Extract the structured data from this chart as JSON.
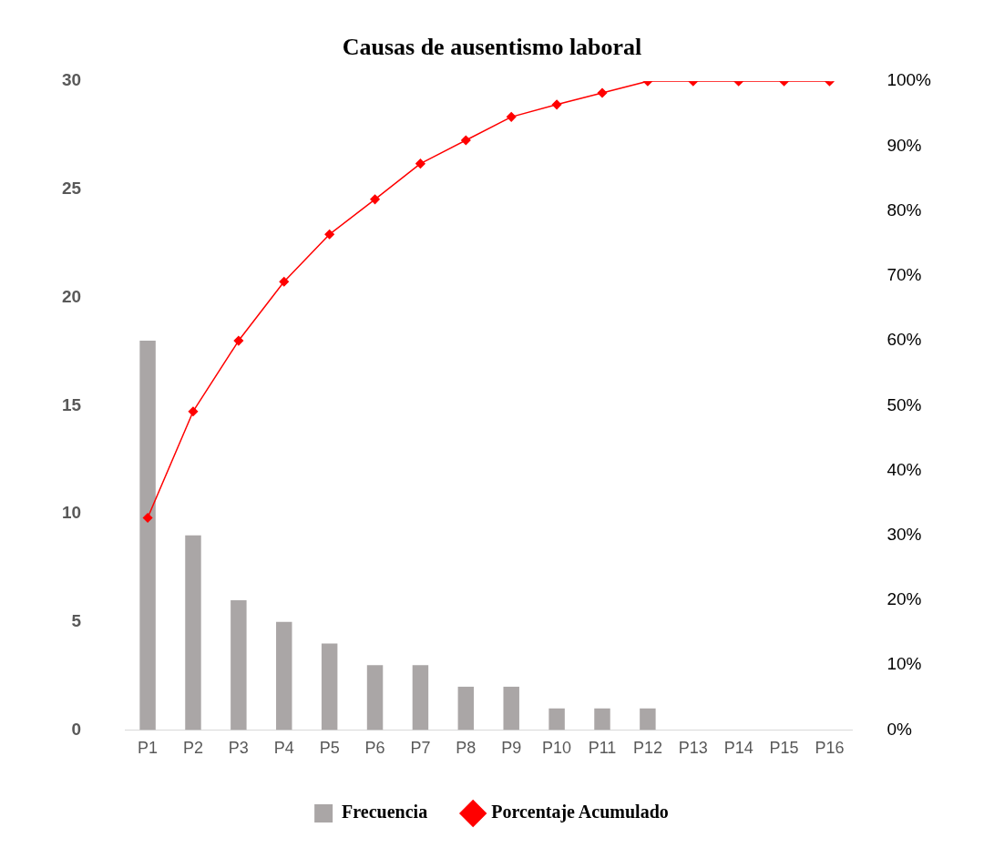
{
  "chart_data": {
    "type": "bar",
    "title": "Causas de ausentismo laboral",
    "categories": [
      "P1",
      "P2",
      "P3",
      "P4",
      "P5",
      "P6",
      "P7",
      "P8",
      "P9",
      "P10",
      "P11",
      "P12",
      "P13",
      "P14",
      "P15",
      "P16"
    ],
    "series": [
      {
        "name": "Frecuencia",
        "color": "#aaa6a6",
        "values": [
          18,
          9,
          6,
          5,
          4,
          3,
          3,
          2,
          2,
          1,
          1,
          1,
          0,
          0,
          0,
          0
        ]
      },
      {
        "name": "Porcentaje Acumulado",
        "type": "line",
        "axis": "y2",
        "color": "#ff0000",
        "values": [
          32.7,
          49.1,
          60,
          69.1,
          76.4,
          81.8,
          87.3,
          90.9,
          94.5,
          96.4,
          98.2,
          100,
          100,
          100,
          100,
          100
        ]
      }
    ],
    "ylim": [
      0,
      30
    ],
    "yticks": [
      0,
      5,
      10,
      15,
      20,
      25,
      30
    ],
    "y2lim": [
      0,
      100
    ],
    "y2ticks": [
      {
        "value": 0,
        "label": "0%"
      },
      {
        "value": 10,
        "label": "10%"
      },
      {
        "value": 20,
        "label": "20%"
      },
      {
        "value": 30,
        "label": "30%"
      },
      {
        "value": 40,
        "label": "40%"
      },
      {
        "value": 50,
        "label": "50%"
      },
      {
        "value": 60,
        "label": "60%"
      },
      {
        "value": 70,
        "label": "70%"
      },
      {
        "value": 80,
        "label": "80%"
      },
      {
        "value": 90,
        "label": "90%"
      },
      {
        "value": 100,
        "label": "100%"
      }
    ],
    "legend": "bottom",
    "marker": "diamond",
    "grid": false,
    "line_style": "solid"
  }
}
